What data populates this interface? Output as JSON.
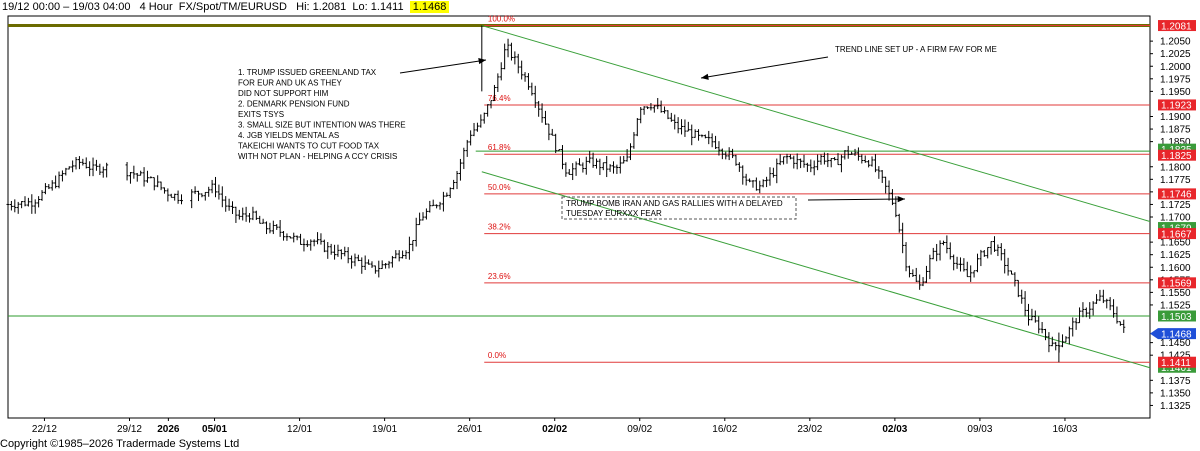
{
  "header": {
    "range": "19/12 00:00 – 19/03 04:00",
    "timeframe": "4 Hour",
    "symbol": "FX/Spot/TM/EURUSD",
    "hi": "Hi: 1.2081",
    "lo": "Lo: 1.1411",
    "last": "1.1468"
  },
  "footer": {
    "copyright": "Copyright ©1985–2026 Tradermade Systems Ltd"
  },
  "chart_data": {
    "type": "candlestick-ohlc-bars",
    "title": "",
    "symbol": "EURUSD",
    "ylim": [
      1.13,
      1.21
    ],
    "y_ticks": [
      "1.2050",
      "1.2025",
      "1.2000",
      "1.1975",
      "1.1950",
      "1.1900",
      "1.1875",
      "1.1850",
      "1.1800",
      "1.1775",
      "1.1750",
      "1.1725",
      "1.1700",
      "1.1650",
      "1.1625",
      "1.1600",
      "1.1575",
      "1.1550",
      "1.1525",
      "1.1450",
      "1.1425",
      "1.1375",
      "1.1350",
      "1.1325"
    ],
    "x_ticks": [
      {
        "label": "22/12",
        "bold": false,
        "t": 3
      },
      {
        "label": "29/12",
        "bold": false,
        "t": 10
      },
      {
        "label": "2026",
        "bold": true,
        "t": 13.2
      },
      {
        "label": "05/01",
        "bold": true,
        "t": 17
      },
      {
        "label": "12/01",
        "bold": false,
        "t": 24
      },
      {
        "label": "19/01",
        "bold": false,
        "t": 31
      },
      {
        "label": "26/01",
        "bold": false,
        "t": 38
      },
      {
        "label": "02/02",
        "bold": true,
        "t": 45
      },
      {
        "label": "09/02",
        "bold": false,
        "t": 52
      },
      {
        "label": "16/02",
        "bold": false,
        "t": 59
      },
      {
        "label": "23/02",
        "bold": false,
        "t": 66
      },
      {
        "label": "02/03",
        "bold": true,
        "t": 73
      },
      {
        "label": "09/03",
        "bold": false,
        "t": 80
      },
      {
        "label": "16/03",
        "bold": false,
        "t": 87
      }
    ],
    "price_path": [
      [
        0,
        1.1725
      ],
      [
        2,
        1.173
      ],
      [
        4,
        1.177
      ],
      [
        5,
        1.18
      ],
      [
        6,
        1.181
      ],
      [
        7,
        1.1795
      ],
      [
        8,
        1.18
      ],
      [
        10,
        1.179
      ],
      [
        11,
        1.178
      ],
      [
        12,
        1.177
      ],
      [
        13,
        1.175
      ],
      [
        14,
        1.174
      ],
      [
        15,
        1.1745
      ],
      [
        16,
        1.175
      ],
      [
        17,
        1.176
      ],
      [
        18,
        1.172
      ],
      [
        19,
        1.17
      ],
      [
        20,
        1.1705
      ],
      [
        21,
        1.168
      ],
      [
        22,
        1.1675
      ],
      [
        23,
        1.1665
      ],
      [
        24,
        1.165
      ],
      [
        25,
        1.1655
      ],
      [
        26,
        1.164
      ],
      [
        27,
        1.163
      ],
      [
        28,
        1.162
      ],
      [
        29,
        1.161
      ],
      [
        30,
        1.1595
      ],
      [
        31,
        1.1605
      ],
      [
        32,
        1.1625
      ],
      [
        33,
        1.164
      ],
      [
        34,
        1.17
      ],
      [
        35,
        1.172
      ],
      [
        36,
        1.1745
      ],
      [
        37,
        1.179
      ],
      [
        38,
        1.1865
      ],
      [
        39,
        1.189
      ],
      [
        40,
        1.195
      ],
      [
        41,
        1.204
      ],
      [
        42,
        1.2
      ],
      [
        43,
        1.196
      ],
      [
        44,
        1.19
      ],
      [
        45,
        1.1845
      ],
      [
        46,
        1.179
      ],
      [
        47,
        1.18
      ],
      [
        48,
        1.181
      ],
      [
        49,
        1.18
      ],
      [
        50,
        1.1795
      ],
      [
        51,
        1.1815
      ],
      [
        52,
        1.192
      ],
      [
        53,
        1.1925
      ],
      [
        54,
        1.1905
      ],
      [
        55,
        1.188
      ],
      [
        56,
        1.187
      ],
      [
        57,
        1.1855
      ],
      [
        58,
        1.185
      ],
      [
        59,
        1.183
      ],
      [
        60,
        1.181
      ],
      [
        61,
        1.1765
      ],
      [
        62,
        1.176
      ],
      [
        63,
        1.179
      ],
      [
        64,
        1.182
      ],
      [
        65,
        1.181
      ],
      [
        66,
        1.18
      ],
      [
        67,
        1.182
      ],
      [
        68,
        1.1805
      ],
      [
        69,
        1.183
      ],
      [
        70,
        1.182
      ],
      [
        71,
        1.181
      ],
      [
        72,
        1.177
      ],
      [
        73,
        1.172
      ],
      [
        74,
        1.16
      ],
      [
        75,
        1.156
      ],
      [
        76,
        1.162
      ],
      [
        77,
        1.165
      ],
      [
        78,
        1.161
      ],
      [
        79,
        1.158
      ],
      [
        80,
        1.162
      ],
      [
        81,
        1.165
      ],
      [
        82,
        1.161
      ],
      [
        83,
        1.156
      ],
      [
        84,
        1.15
      ],
      [
        85,
        1.148
      ],
      [
        86,
        1.144
      ],
      [
        87,
        1.146
      ],
      [
        88,
        1.15
      ],
      [
        89,
        1.152
      ],
      [
        90,
        1.154
      ],
      [
        91,
        1.151
      ],
      [
        92,
        1.1468
      ]
    ],
    "fib_levels": [
      {
        "label": "100.0%",
        "price": 1.2081
      },
      {
        "label": "76.4%",
        "price": 1.1923
      },
      {
        "label": "61.8%",
        "price": 1.1825
      },
      {
        "label": "50.0%",
        "price": 1.1746
      },
      {
        "label": "38.2%",
        "price": 1.1667
      },
      {
        "label": "23.6%",
        "price": 1.1569
      },
      {
        "label": "0.0%",
        "price": 1.1411
      }
    ],
    "horizontal_lines": [
      {
        "price": 1.2081,
        "color": "#6b6b00"
      },
      {
        "price": 1.1831,
        "color": "#2e9b2e",
        "from_t": 38.5
      },
      {
        "price": 1.1503,
        "color": "#2e9b2e",
        "from_t": 0
      }
    ],
    "trend_lines": [
      {
        "from": [
          39,
          1.2081
        ],
        "to": [
          94,
          1.1691
        ]
      },
      {
        "from": [
          39,
          1.179
        ],
        "to": [
          94,
          1.14
        ]
      }
    ],
    "price_tags": [
      {
        "value": "1.2081",
        "color": "#e8262b",
        "price": 1.2081
      },
      {
        "value": "1.1923",
        "color": "#e8262b",
        "price": 1.1923
      },
      {
        "value": "1.1835",
        "color": "#3a9b3a",
        "price": 1.1835
      },
      {
        "value": "1.1825",
        "color": "#e8262b",
        "price": 1.1823
      },
      {
        "value": "1.1746",
        "color": "#e8262b",
        "price": 1.1746
      },
      {
        "value": "1.1679",
        "color": "#3a9b3a",
        "price": 1.1679
      },
      {
        "value": "1.1667",
        "color": "#e8262b",
        "price": 1.1667
      },
      {
        "value": "1.1569",
        "color": "#e8262b",
        "price": 1.1569
      },
      {
        "value": "1.1503",
        "color": "#3a9b3a",
        "price": 1.1503
      },
      {
        "value": "1.1468",
        "color": "#1f4fd8",
        "price": 1.1468,
        "pointer": true
      },
      {
        "value": "1.1401",
        "color": "#3a9b3a",
        "price": 1.1401
      },
      {
        "value": "1.1411",
        "color": "#e8262b",
        "price": 1.1411
      }
    ],
    "annotations": {
      "greenland_lines": [
        "1. TRUMP ISSUED GREENLAND TAX",
        "FOR EUR AND UK AS THEY",
        "DID NOT SUPPORT HIM",
        "2. DENMARK PENSION FUND",
        "EXITS TSYS",
        "3. SMALL SIZE BUT INTENTION WAS THERE",
        "4. JGB YIELDS MENTAL AS",
        "TAKEICHI WANTS TO CUT FOOD TAX",
        "WITH NOT PLAN - HELPING A CCY CRISIS"
      ],
      "trend_note": "TREND LINE SET UP - A FIRM FAV FOR ME",
      "iran_lines": [
        "TRUMP BOMB IRAN AND GAS RALLIES WITH A DELAYED",
        "TUESDAY EURXXX FEAR"
      ]
    }
  }
}
